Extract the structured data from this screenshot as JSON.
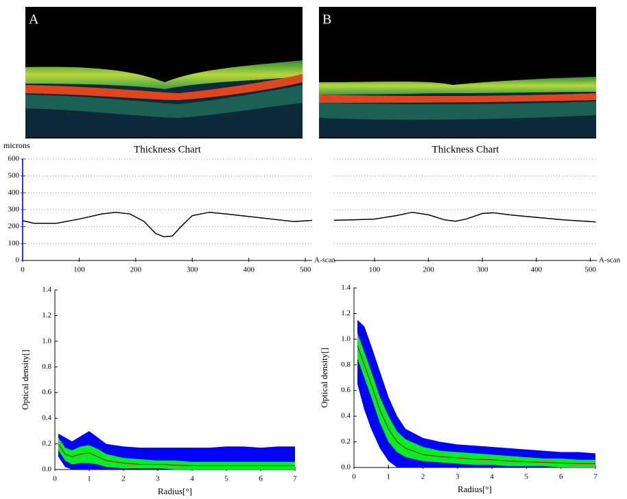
{
  "panel_labels": [
    "A",
    "B"
  ],
  "chart_data": [
    {
      "type": "line",
      "title": "Thickness Chart",
      "ylabel": "microns",
      "xlabel": "A-scan",
      "color": "#000000",
      "x": [
        0,
        20,
        60,
        100,
        140,
        165,
        190,
        215,
        235,
        250,
        265,
        280,
        300,
        330,
        360,
        400,
        440,
        480,
        512
      ],
      "values": [
        235,
        220,
        220,
        245,
        275,
        285,
        275,
        230,
        160,
        140,
        145,
        200,
        265,
        285,
        275,
        260,
        245,
        230,
        237
      ],
      "xlim": [
        0,
        512
      ],
      "ylim": [
        0,
        600
      ],
      "xticks": [
        0,
        100,
        200,
        300,
        400,
        500
      ],
      "yticks": [
        0,
        100,
        200,
        300,
        400,
        500,
        600
      ],
      "grid": true,
      "axis_color": "#3333cc"
    },
    {
      "type": "line",
      "title": "Thickness Chart",
      "xlabel": "A-scan",
      "color": "#000000",
      "x": [
        25,
        60,
        100,
        140,
        170,
        200,
        230,
        250,
        270,
        300,
        320,
        350,
        400,
        450,
        510
      ],
      "values": [
        238,
        240,
        245,
        265,
        285,
        270,
        240,
        232,
        245,
        278,
        282,
        270,
        255,
        240,
        228
      ],
      "xlim": [
        25,
        512
      ],
      "ylim": [
        0,
        600
      ],
      "xticks": [
        100,
        200,
        300,
        400,
        500
      ],
      "yticks": [
        100,
        200,
        300,
        400,
        500,
        600
      ],
      "ytick_labels": false,
      "grid": true
    },
    {
      "type": "band",
      "xlabel": "Radius[°]",
      "ylabel": "Optical density[]",
      "x": [
        0.1,
        0.3,
        0.5,
        0.75,
        1,
        1.25,
        1.5,
        2,
        2.5,
        3,
        3.5,
        4,
        4.5,
        5,
        5.5,
        6,
        6.5,
        7
      ],
      "series": [
        {
          "color": "#0000ff",
          "upper": [
            0.28,
            0.25,
            0.22,
            0.26,
            0.3,
            0.25,
            0.2,
            0.18,
            0.17,
            0.17,
            0.17,
            0.17,
            0.17,
            0.18,
            0.18,
            0.17,
            0.18,
            0.18
          ],
          "lower": [
            0.1,
            0.02,
            0,
            0,
            0,
            0,
            0,
            0,
            0,
            0,
            0,
            0,
            0,
            0,
            0,
            0,
            0,
            0
          ]
        },
        {
          "color": "#00ee22",
          "upper": [
            0.25,
            0.17,
            0.15,
            0.18,
            0.19,
            0.16,
            0.12,
            0.09,
            0.08,
            0.07,
            0.07,
            0.06,
            0.06,
            0.06,
            0.06,
            0.06,
            0.06,
            0.06
          ],
          "lower": [
            0.15,
            0.07,
            0.04,
            0.05,
            0.05,
            0.04,
            0.02,
            0.01,
            0.01,
            0.01,
            0,
            0,
            0,
            0,
            0,
            0,
            0,
            0
          ]
        },
        {
          "color": "#cc0000",
          "values": [
            0.2,
            0.12,
            0.1,
            0.12,
            0.13,
            0.1,
            0.07,
            0.05,
            0.04,
            0.04,
            0.035,
            0.03,
            0.03,
            0.03,
            0.03,
            0.03,
            0.03,
            0.03
          ]
        }
      ],
      "xlim": [
        0,
        7
      ],
      "ylim": [
        0,
        1.4
      ],
      "xticks": [
        0,
        1,
        2,
        3,
        4,
        5,
        6,
        7
      ],
      "yticks": [
        {
          "value": 0,
          "label": "0.0"
        },
        0.2,
        0.4,
        0.6,
        0.8,
        {
          "value": 1,
          "label": "1.0"
        },
        1.2,
        1.4
      ]
    },
    {
      "type": "band",
      "xlabel": "Radius[°]",
      "ylabel": "Optical density[]",
      "x": [
        0.1,
        0.3,
        0.5,
        0.75,
        1,
        1.25,
        1.5,
        2,
        2.5,
        3,
        3.5,
        4,
        4.5,
        5,
        5.5,
        6,
        6.5,
        7
      ],
      "series": [
        {
          "color": "#0000ff",
          "upper": [
            1.15,
            1.1,
            0.95,
            0.75,
            0.55,
            0.4,
            0.3,
            0.23,
            0.2,
            0.18,
            0.17,
            0.16,
            0.15,
            0.14,
            0.13,
            0.12,
            0.12,
            0.11
          ],
          "lower": [
            0.65,
            0.45,
            0.3,
            0.15,
            0.05,
            0,
            0,
            0,
            0,
            0,
            0,
            0,
            0,
            0,
            0,
            0,
            0,
            0
          ]
        },
        {
          "color": "#00ee22",
          "upper": [
            1.05,
            0.9,
            0.75,
            0.55,
            0.4,
            0.28,
            0.22,
            0.16,
            0.13,
            0.12,
            0.11,
            0.1,
            0.09,
            0.08,
            0.07,
            0.07,
            0.06,
            0.06
          ],
          "lower": [
            0.85,
            0.7,
            0.55,
            0.35,
            0.2,
            0.12,
            0.08,
            0.05,
            0.04,
            0.03,
            0.02,
            0.02,
            0.01,
            0.01,
            0.01,
            0,
            0,
            0
          ]
        },
        {
          "color": "#cc0000",
          "values": [
            0.95,
            0.8,
            0.65,
            0.45,
            0.3,
            0.2,
            0.15,
            0.1,
            0.085,
            0.075,
            0.065,
            0.06,
            0.05,
            0.045,
            0.04,
            0.035,
            0.03,
            0.03
          ]
        }
      ],
      "xlim": [
        0,
        7
      ],
      "ylim": [
        0,
        1.4
      ],
      "xticks": [
        0,
        1,
        2,
        3,
        4,
        5,
        6,
        7
      ],
      "yticks": [
        {
          "value": 0,
          "label": "0.0"
        },
        0.2,
        0.4,
        0.6,
        0.8,
        {
          "value": 1,
          "label": "1.0"
        },
        1.2,
        1.4
      ]
    }
  ]
}
